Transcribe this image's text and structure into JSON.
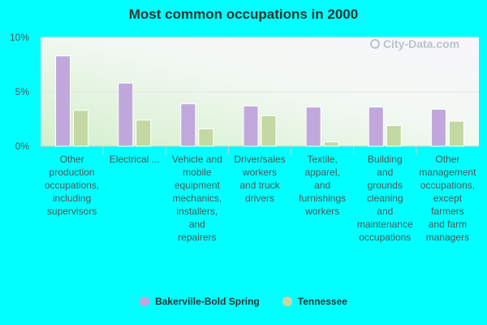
{
  "chart_data": {
    "type": "bar",
    "title": "Most common occupations in 2000",
    "categories": [
      "Other production occupations, including supervisors",
      "Electrical ...",
      "Vehicle and mobile equipment mechanics, installers, and repairers",
      "Driver/sales workers and truck drivers",
      "Textile, apparel, and furnishings workers",
      "Building and grounds cleaning and maintenance occupations",
      "Other management occupations, except farmers and farm managers"
    ],
    "category_lines": [
      [
        "Other",
        "production",
        "occupations,",
        "including",
        "supervisors"
      ],
      [
        "Electrical ..."
      ],
      [
        "Vehicle and",
        "mobile",
        "equipment",
        "mechanics,",
        "installers,",
        "and",
        "repairers"
      ],
      [
        "Driver/sales",
        "workers",
        "and truck",
        "drivers"
      ],
      [
        "Textile,",
        "apparel,",
        "and",
        "furnishings",
        "workers"
      ],
      [
        "Building",
        "and",
        "grounds",
        "cleaning",
        "and",
        "maintenance",
        "occupations"
      ],
      [
        "Other",
        "management",
        "occupations,",
        "except",
        "farmers",
        "and farm",
        "managers"
      ]
    ],
    "series": [
      {
        "name": "Bakerville-Bold Spring",
        "color": "#c0a8dc",
        "values": [
          8.3,
          5.8,
          3.9,
          3.7,
          3.6,
          3.6,
          3.4
        ]
      },
      {
        "name": "Tennessee",
        "color": "#c4d8a4",
        "values": [
          3.3,
          2.4,
          1.6,
          2.8,
          0.4,
          1.9,
          2.3
        ]
      }
    ],
    "ylim": [
      0,
      10
    ],
    "yticks": [
      0,
      5,
      10
    ],
    "ytick_labels": [
      "0%",
      "5%",
      "10%"
    ],
    "grid": true,
    "legend_position": "bottom-center"
  },
  "watermark": {
    "text": "City-Data.com",
    "icon": "city-data-logo-icon"
  }
}
